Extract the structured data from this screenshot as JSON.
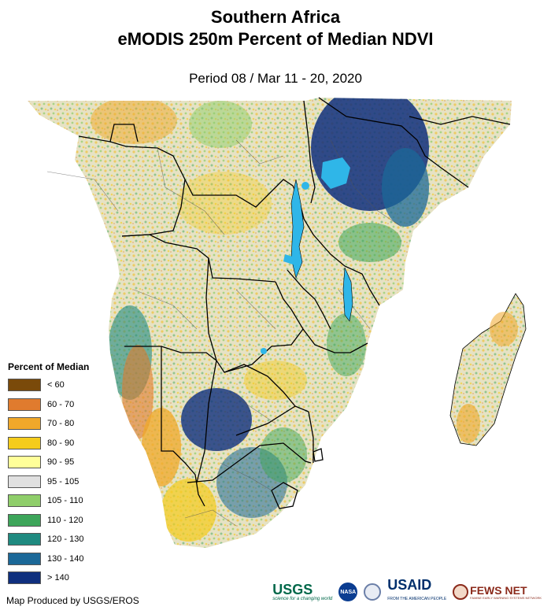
{
  "title": {
    "line1": "Southern Africa",
    "line2": "eMODIS 250m Percent of Median NDVI"
  },
  "period": "Period 08 / Mar 11 - 20, 2020",
  "legend": {
    "title": "Percent of Median",
    "classes": [
      {
        "label": "< 60",
        "color": "#7a4a0a"
      },
      {
        "label": "60 - 70",
        "color": "#e07b2e"
      },
      {
        "label": "70 - 80",
        "color": "#f0a82a"
      },
      {
        "label": "80 - 90",
        "color": "#f5cc1c"
      },
      {
        "label": "90 - 95",
        "color": "#ffff99"
      },
      {
        "label": "95 - 105",
        "color": "#e0e0e0"
      },
      {
        "label": "105 - 110",
        "color": "#8fce6a"
      },
      {
        "label": "110 - 120",
        "color": "#3da55a"
      },
      {
        "label": "120 - 130",
        "color": "#1f8a80"
      },
      {
        "label": "130 - 140",
        "color": "#1b6898"
      },
      {
        "label": "> 140",
        "color": "#0f2f7e"
      }
    ]
  },
  "credit": "Map Produced by USGS/EROS",
  "logos": {
    "usgs": "USGS",
    "usgs_tagline": "science for a changing world",
    "nasa": "NASA",
    "usaid": "USAID",
    "usaid_tagline": "FROM THE AMERICAN PEOPLE",
    "fews": "FEWS NET",
    "fews_tagline": "FAMINE EARLY WARNING SYSTEMS NETWORK"
  },
  "colors": {
    "water": "#2fb6e8",
    "boundary": "#000000"
  }
}
